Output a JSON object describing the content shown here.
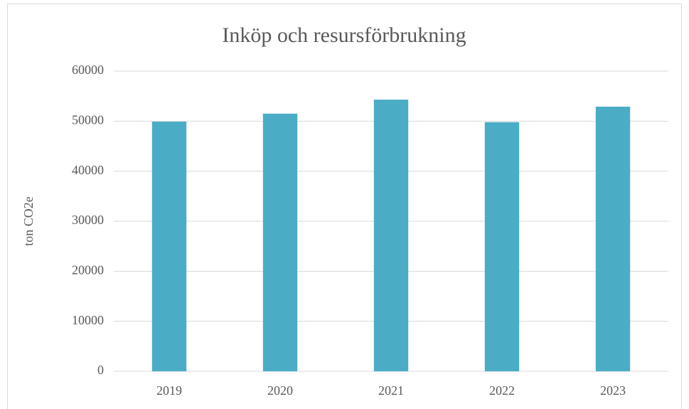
{
  "chart_data": {
    "type": "bar",
    "title": "Inköp och resursförbrukning",
    "y_label": "ton CO2e",
    "categories": [
      "2019",
      "2020",
      "2021",
      "2022",
      "2023"
    ],
    "values": [
      49900,
      51500,
      54300,
      49800,
      52900
    ],
    "color": "#4bacc6",
    "ylim": [
      0,
      60000
    ],
    "yticks": [
      0,
      10000,
      20000,
      30000,
      40000,
      50000,
      60000
    ],
    "grid": true
  }
}
